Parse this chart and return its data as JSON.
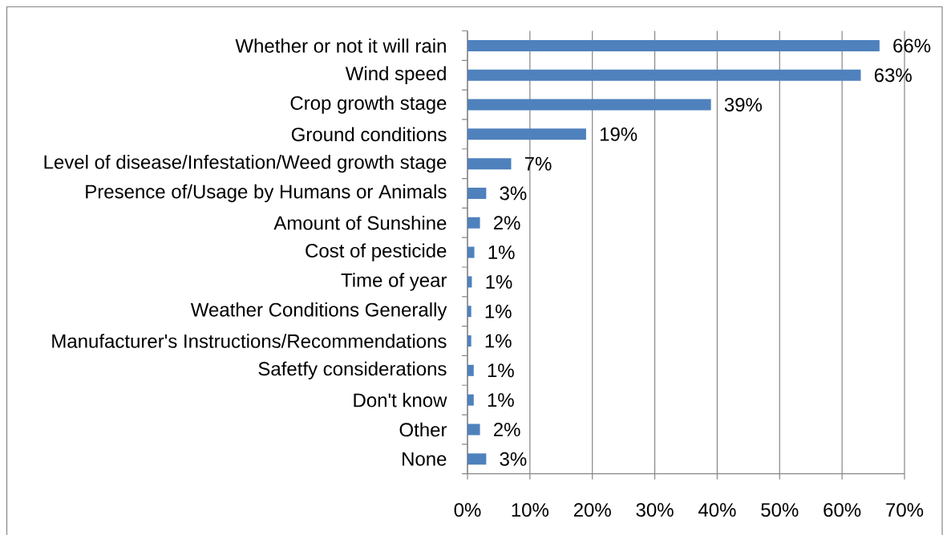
{
  "chart_data": {
    "type": "bar",
    "orientation": "horizontal",
    "categories": [
      "Whether or not it will rain",
      "Wind speed",
      "Crop growth stage",
      "Ground conditions",
      "Level of disease/Infestation/Weed growth stage",
      "Presence of/Usage by  Humans or Animals",
      "Amount of Sunshine",
      "Cost of pesticide",
      "Time of year",
      "Weather Conditions Generally",
      "Manufacturer's Instructions/Recommendations",
      "Safetfy considerations",
      "Don't know",
      "Other",
      "None"
    ],
    "values": [
      66,
      63,
      39,
      19,
      7,
      3,
      2,
      1.1,
      0.7,
      0.6,
      0.6,
      1,
      1,
      2,
      3
    ],
    "value_labels": [
      "66%",
      "63%",
      "39%",
      "19%",
      "7%",
      "3%",
      "2%",
      "1%",
      "1%",
      "1%",
      "1%",
      "1%",
      "1%",
      "2%",
      "3%"
    ],
    "color": "#4f81bd",
    "xlim": [
      0,
      70
    ],
    "xticks": [
      {
        "value": 0,
        "label": "0%"
      },
      {
        "value": 10,
        "label": "10%"
      },
      {
        "value": 20,
        "label": "20%"
      },
      {
        "value": 30,
        "label": "30%"
      },
      {
        "value": 40,
        "label": "40%"
      },
      {
        "value": 50,
        "label": "50%"
      },
      {
        "value": 60,
        "label": "60%"
      },
      {
        "value": 70,
        "label": "70%"
      }
    ],
    "grid": "x"
  }
}
